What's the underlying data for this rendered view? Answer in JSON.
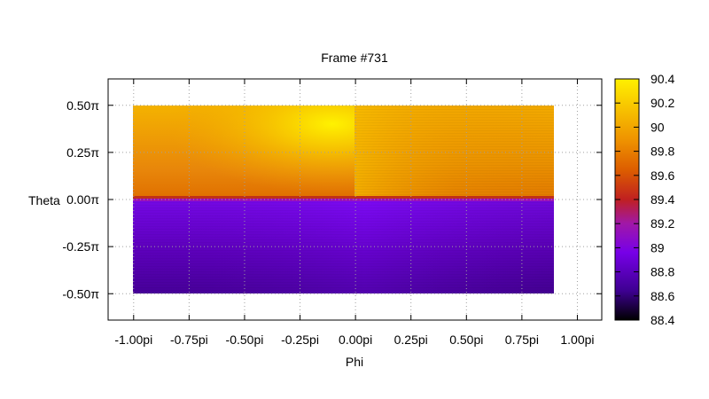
{
  "chart_data": {
    "type": "heatmap",
    "title": "Frame #731",
    "xlabel": "Phi",
    "ylabel": "Theta",
    "xlim": [
      -1.115,
      1.11
    ],
    "ylim": [
      -0.64,
      0.64
    ],
    "x_ticks": [
      {
        "value": -1.0,
        "label": "-1.00pi"
      },
      {
        "value": -0.75,
        "label": "-0.75pi"
      },
      {
        "value": -0.5,
        "label": "-0.50pi"
      },
      {
        "value": -0.25,
        "label": "-0.25pi"
      },
      {
        "value": 0.0,
        "label": "0.00pi"
      },
      {
        "value": 0.25,
        "label": "0.25pi"
      },
      {
        "value": 0.5,
        "label": "0.50pi"
      },
      {
        "value": 0.75,
        "label": "0.75pi"
      },
      {
        "value": 1.0,
        "label": "1.00pi"
      }
    ],
    "y_ticks": [
      {
        "value": 0.5,
        "label": "0.50π"
      },
      {
        "value": 0.25,
        "label": "0.25π"
      },
      {
        "value": 0.0,
        "label": "0.00π"
      },
      {
        "value": -0.25,
        "label": "-0.25π"
      },
      {
        "value": -0.5,
        "label": "-0.50π"
      }
    ],
    "data_extent": {
      "x": [
        -1.0,
        0.9
      ],
      "y": [
        -0.5,
        0.5
      ]
    },
    "colorbar": {
      "range": [
        88.4,
        90.4
      ],
      "ticks": [
        "90.4",
        "90.2",
        "90",
        "89.8",
        "89.6",
        "89.4",
        "89.2",
        "89",
        "88.8",
        "88.6",
        "88.4"
      ],
      "palette": [
        "#000000",
        "#3d0090",
        "#7700e8",
        "#a018a8",
        "#c02020",
        "#dc5c00",
        "#ee9000",
        "#f7c000",
        "#fff000"
      ]
    },
    "regions": [
      {
        "name": "upper-left",
        "x": [
          -1.0,
          0.0
        ],
        "y": [
          0.0,
          0.5
        ],
        "value_range": [
          89.8,
          90.35
        ]
      },
      {
        "name": "upper-right",
        "x": [
          0.0,
          0.9
        ],
        "y": [
          0.0,
          0.5
        ],
        "value_range": [
          89.8,
          90.1
        ]
      },
      {
        "name": "lower",
        "x": [
          -1.0,
          0.9
        ],
        "y": [
          -0.5,
          0.0
        ],
        "value_range": [
          88.65,
          88.95
        ]
      }
    ],
    "grid": true
  }
}
